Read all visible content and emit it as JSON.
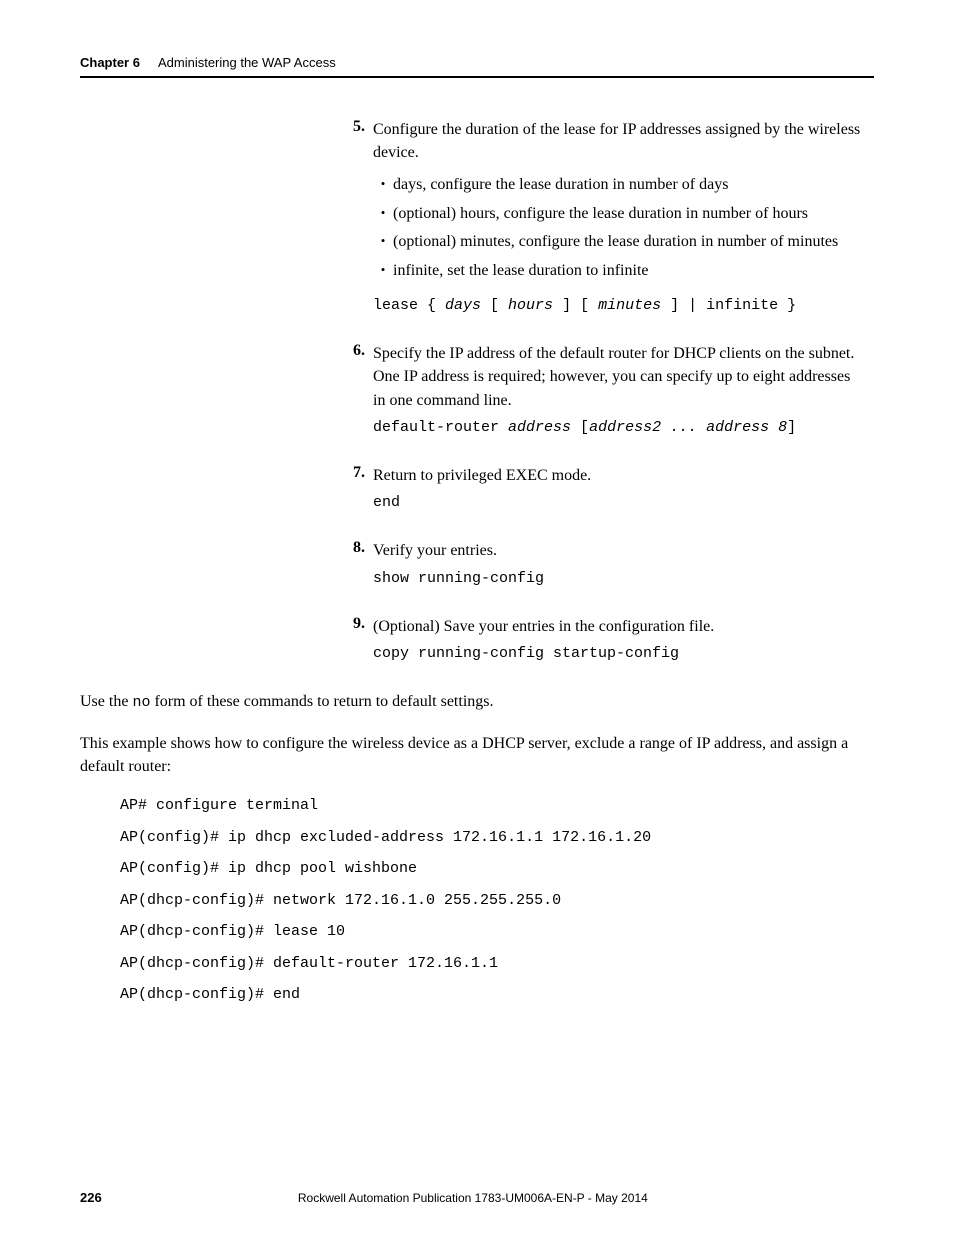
{
  "header": {
    "chapter_label": "Chapter 6",
    "chapter_title": "Administering the WAP Access"
  },
  "steps": [
    {
      "num": "5.",
      "text": "Configure the duration of the lease for IP addresses assigned by the wireless device.",
      "bullets": [
        "days, configure the lease duration in number of days",
        "(optional) hours, configure the lease duration in number of hours",
        "(optional) minutes, configure the lease duration in number of minutes",
        "infinite, set the lease duration to infinite"
      ],
      "code_parts": [
        {
          "t": "lease { ",
          "i": false
        },
        {
          "t": "days",
          "i": true
        },
        {
          "t": " [ ",
          "i": false
        },
        {
          "t": "hours",
          "i": true
        },
        {
          "t": " ] [ ",
          "i": false
        },
        {
          "t": "minutes",
          "i": true
        },
        {
          "t": " ] | infinite }",
          "i": false
        }
      ]
    },
    {
      "num": "6.",
      "text": "Specify the IP address of the default router for DHCP clients on the subnet. One IP address is required; however, you can specify up to eight addresses in one command line.",
      "code_parts": [
        {
          "t": "default-router ",
          "i": false
        },
        {
          "t": "address ",
          "i": true
        },
        {
          "t": "[",
          "i": false
        },
        {
          "t": "address2 ... address 8",
          "i": true
        },
        {
          "t": "]",
          "i": false
        }
      ]
    },
    {
      "num": "7.",
      "text": "Return to privileged EXEC mode.",
      "code_parts": [
        {
          "t": "end",
          "i": false
        }
      ]
    },
    {
      "num": "8.",
      "text": "Verify your entries.",
      "code_parts": [
        {
          "t": "show running-config",
          "i": false
        }
      ]
    },
    {
      "num": "9.",
      "text": "(Optional) Save your entries in the configuration file.",
      "code_parts": [
        {
          "t": "copy running-config startup-config",
          "i": false
        }
      ]
    }
  ],
  "para1_pre": "Use the ",
  "para1_code": "no",
  "para1_post": " form of these commands to return to default settings.",
  "para2": "This example shows how to configure the wireless device as a DHCP server, exclude a range of IP address, and assign a default router:",
  "example": [
    "AP# configure terminal",
    "AP(config)# ip dhcp excluded-address 172.16.1.1 172.16.1.20",
    "AP(config)# ip dhcp pool wishbone",
    "AP(dhcp-config)# network 172.16.1.0 255.255.255.0",
    "AP(dhcp-config)# lease 10",
    "AP(dhcp-config)# default-router 172.16.1.1",
    "AP(dhcp-config)# end"
  ],
  "footer": {
    "page": "226",
    "pub": "Rockwell Automation Publication 1783-UM006A-EN-P - May 2014"
  }
}
